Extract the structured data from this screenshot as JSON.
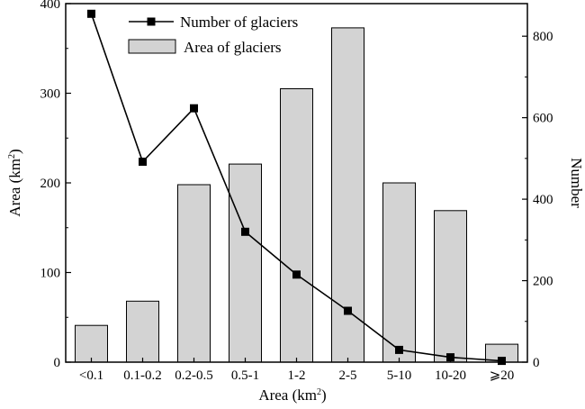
{
  "chart_data": {
    "type": "bar+line",
    "title": "",
    "categories": [
      "<0.1",
      "0.1-0.2",
      "0.2-0.5",
      "0.5-1",
      "1-2",
      "2-5",
      "5-10",
      "10-20",
      "⩾20"
    ],
    "series": [
      {
        "name": "Area of glaciers",
        "type": "bar",
        "axis": "left",
        "values": [
          41,
          68,
          198,
          221,
          305,
          373,
          200,
          169,
          20
        ],
        "fill": "#d3d3d3",
        "stroke": "#000000"
      },
      {
        "name": "Number of glaciers",
        "type": "line",
        "axis": "right",
        "marker": "square",
        "values": [
          855,
          492,
          623,
          320,
          215,
          126,
          30,
          12,
          3
        ],
        "color": "#000000"
      }
    ],
    "xlabel": "Area (km²)",
    "ylabel_left": "Area (km²)",
    "ylabel_right": "Number",
    "ylim_left": [
      0,
      400
    ],
    "ylim_right": [
      0,
      880
    ],
    "yticks_left": [
      0,
      100,
      200,
      300,
      400
    ],
    "yticks_right": [
      0,
      200,
      400,
      600,
      800
    ],
    "legend_position": "top-left",
    "grid": false
  }
}
